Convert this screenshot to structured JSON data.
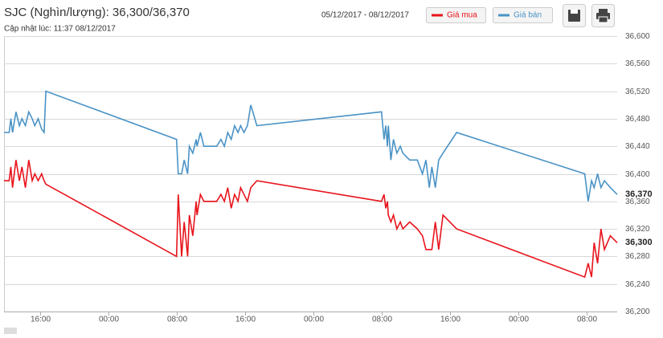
{
  "chart_data": {
    "type": "line",
    "title": "SJC (Nghìn/lượng): 36,300/36,370",
    "subtitle": "Cập nhật lúc: 11:37 08/12/2017",
    "date_range": "05/12/2017 - 08/12/2017",
    "x": [
      11.8,
      12.4,
      12.6,
      12.8,
      13.2,
      13.6,
      13.9,
      14.3,
      14.7,
      15.1,
      15.4,
      15.8,
      16.2,
      16.5,
      16.7,
      32.0,
      32.2,
      32.6,
      32.9,
      33.3,
      33.5,
      33.9,
      34.3,
      34.4,
      34.8,
      35.2,
      36.7,
      37.2,
      37.6,
      38.0,
      38.4,
      38.8,
      39.2,
      39.5,
      39.9,
      40.3,
      40.7,
      41.4,
      56.0,
      56.3,
      56.5,
      56.7,
      56.8,
      57.1,
      57.4,
      57.8,
      58.2,
      58.5,
      59.3,
      60.2,
      60.8,
      61.2,
      61.6,
      61.9,
      62.3,
      62.7,
      63.2,
      64.8,
      79.8,
      80.2,
      80.6,
      80.9,
      81.3,
      81.7,
      82.1,
      82.8,
      83.6
    ],
    "series": [
      {
        "name": "Giá mua",
        "color": "#e8141c",
        "end_label": "36,300",
        "values": [
          36390,
          36390,
          36410,
          36380,
          36420,
          36390,
          36410,
          36380,
          36420,
          36390,
          36400,
          36390,
          36400,
          36390,
          36385,
          36280,
          36370,
          36280,
          36330,
          36280,
          36340,
          36310,
          36360,
          36340,
          36370,
          36360,
          36360,
          36370,
          36360,
          36380,
          36350,
          36370,
          36360,
          36380,
          36370,
          36360,
          36380,
          36390,
          36360,
          36370,
          36350,
          36360,
          36340,
          36330,
          36340,
          36320,
          36330,
          36320,
          36330,
          36320,
          36310,
          36290,
          36290,
          36290,
          36330,
          36290,
          36340,
          36320,
          36250,
          36270,
          36250,
          36300,
          36270,
          36320,
          36290,
          36310,
          36300
        ]
      },
      {
        "name": "Giá bán",
        "color": "#4a93c6",
        "end_label": "36,370",
        "values": [
          36460,
          36460,
          36480,
          36460,
          36490,
          36470,
          36480,
          36470,
          36490,
          36480,
          36470,
          36480,
          36465,
          36460,
          36520,
          36450,
          36400,
          36400,
          36420,
          36400,
          36440,
          36430,
          36450,
          36440,
          36460,
          36440,
          36440,
          36450,
          36440,
          36460,
          36450,
          36470,
          36460,
          36470,
          36460,
          36470,
          36500,
          36470,
          36490,
          36450,
          36470,
          36440,
          36470,
          36420,
          36450,
          36430,
          36440,
          36430,
          36420,
          36420,
          36400,
          36420,
          36380,
          36410,
          36380,
          36420,
          36430,
          36460,
          36400,
          36360,
          36390,
          36380,
          36400,
          36380,
          36390,
          36380,
          36370
        ]
      }
    ],
    "xlim": [
      11.8,
      83.6
    ],
    "xticks": [
      {
        "value": 16,
        "label": "16:00"
      },
      {
        "value": 24,
        "label": "00:00"
      },
      {
        "value": 32,
        "label": "08:00"
      },
      {
        "value": 40,
        "label": "16:00"
      },
      {
        "value": 48,
        "label": "00:00"
      },
      {
        "value": 56,
        "label": "08:00"
      },
      {
        "value": 64,
        "label": "16:00"
      },
      {
        "value": 72,
        "label": "00:00"
      },
      {
        "value": 80,
        "label": "08:00"
      }
    ],
    "ylim": [
      36200,
      36600
    ],
    "yticks": [
      {
        "value": 36200,
        "label": "36,200"
      },
      {
        "value": 36240,
        "label": "36,240"
      },
      {
        "value": 36280,
        "label": "36,280"
      },
      {
        "value": 36320,
        "label": "36,320"
      },
      {
        "value": 36360,
        "label": "36,360"
      },
      {
        "value": 36400,
        "label": "36,400"
      },
      {
        "value": 36440,
        "label": "36,440"
      },
      {
        "value": 36480,
        "label": "36,480"
      },
      {
        "value": 36520,
        "label": "36,520"
      },
      {
        "value": 36560,
        "label": "36,560"
      },
      {
        "value": 36600,
        "label": "36,600"
      }
    ],
    "grid": true
  }
}
